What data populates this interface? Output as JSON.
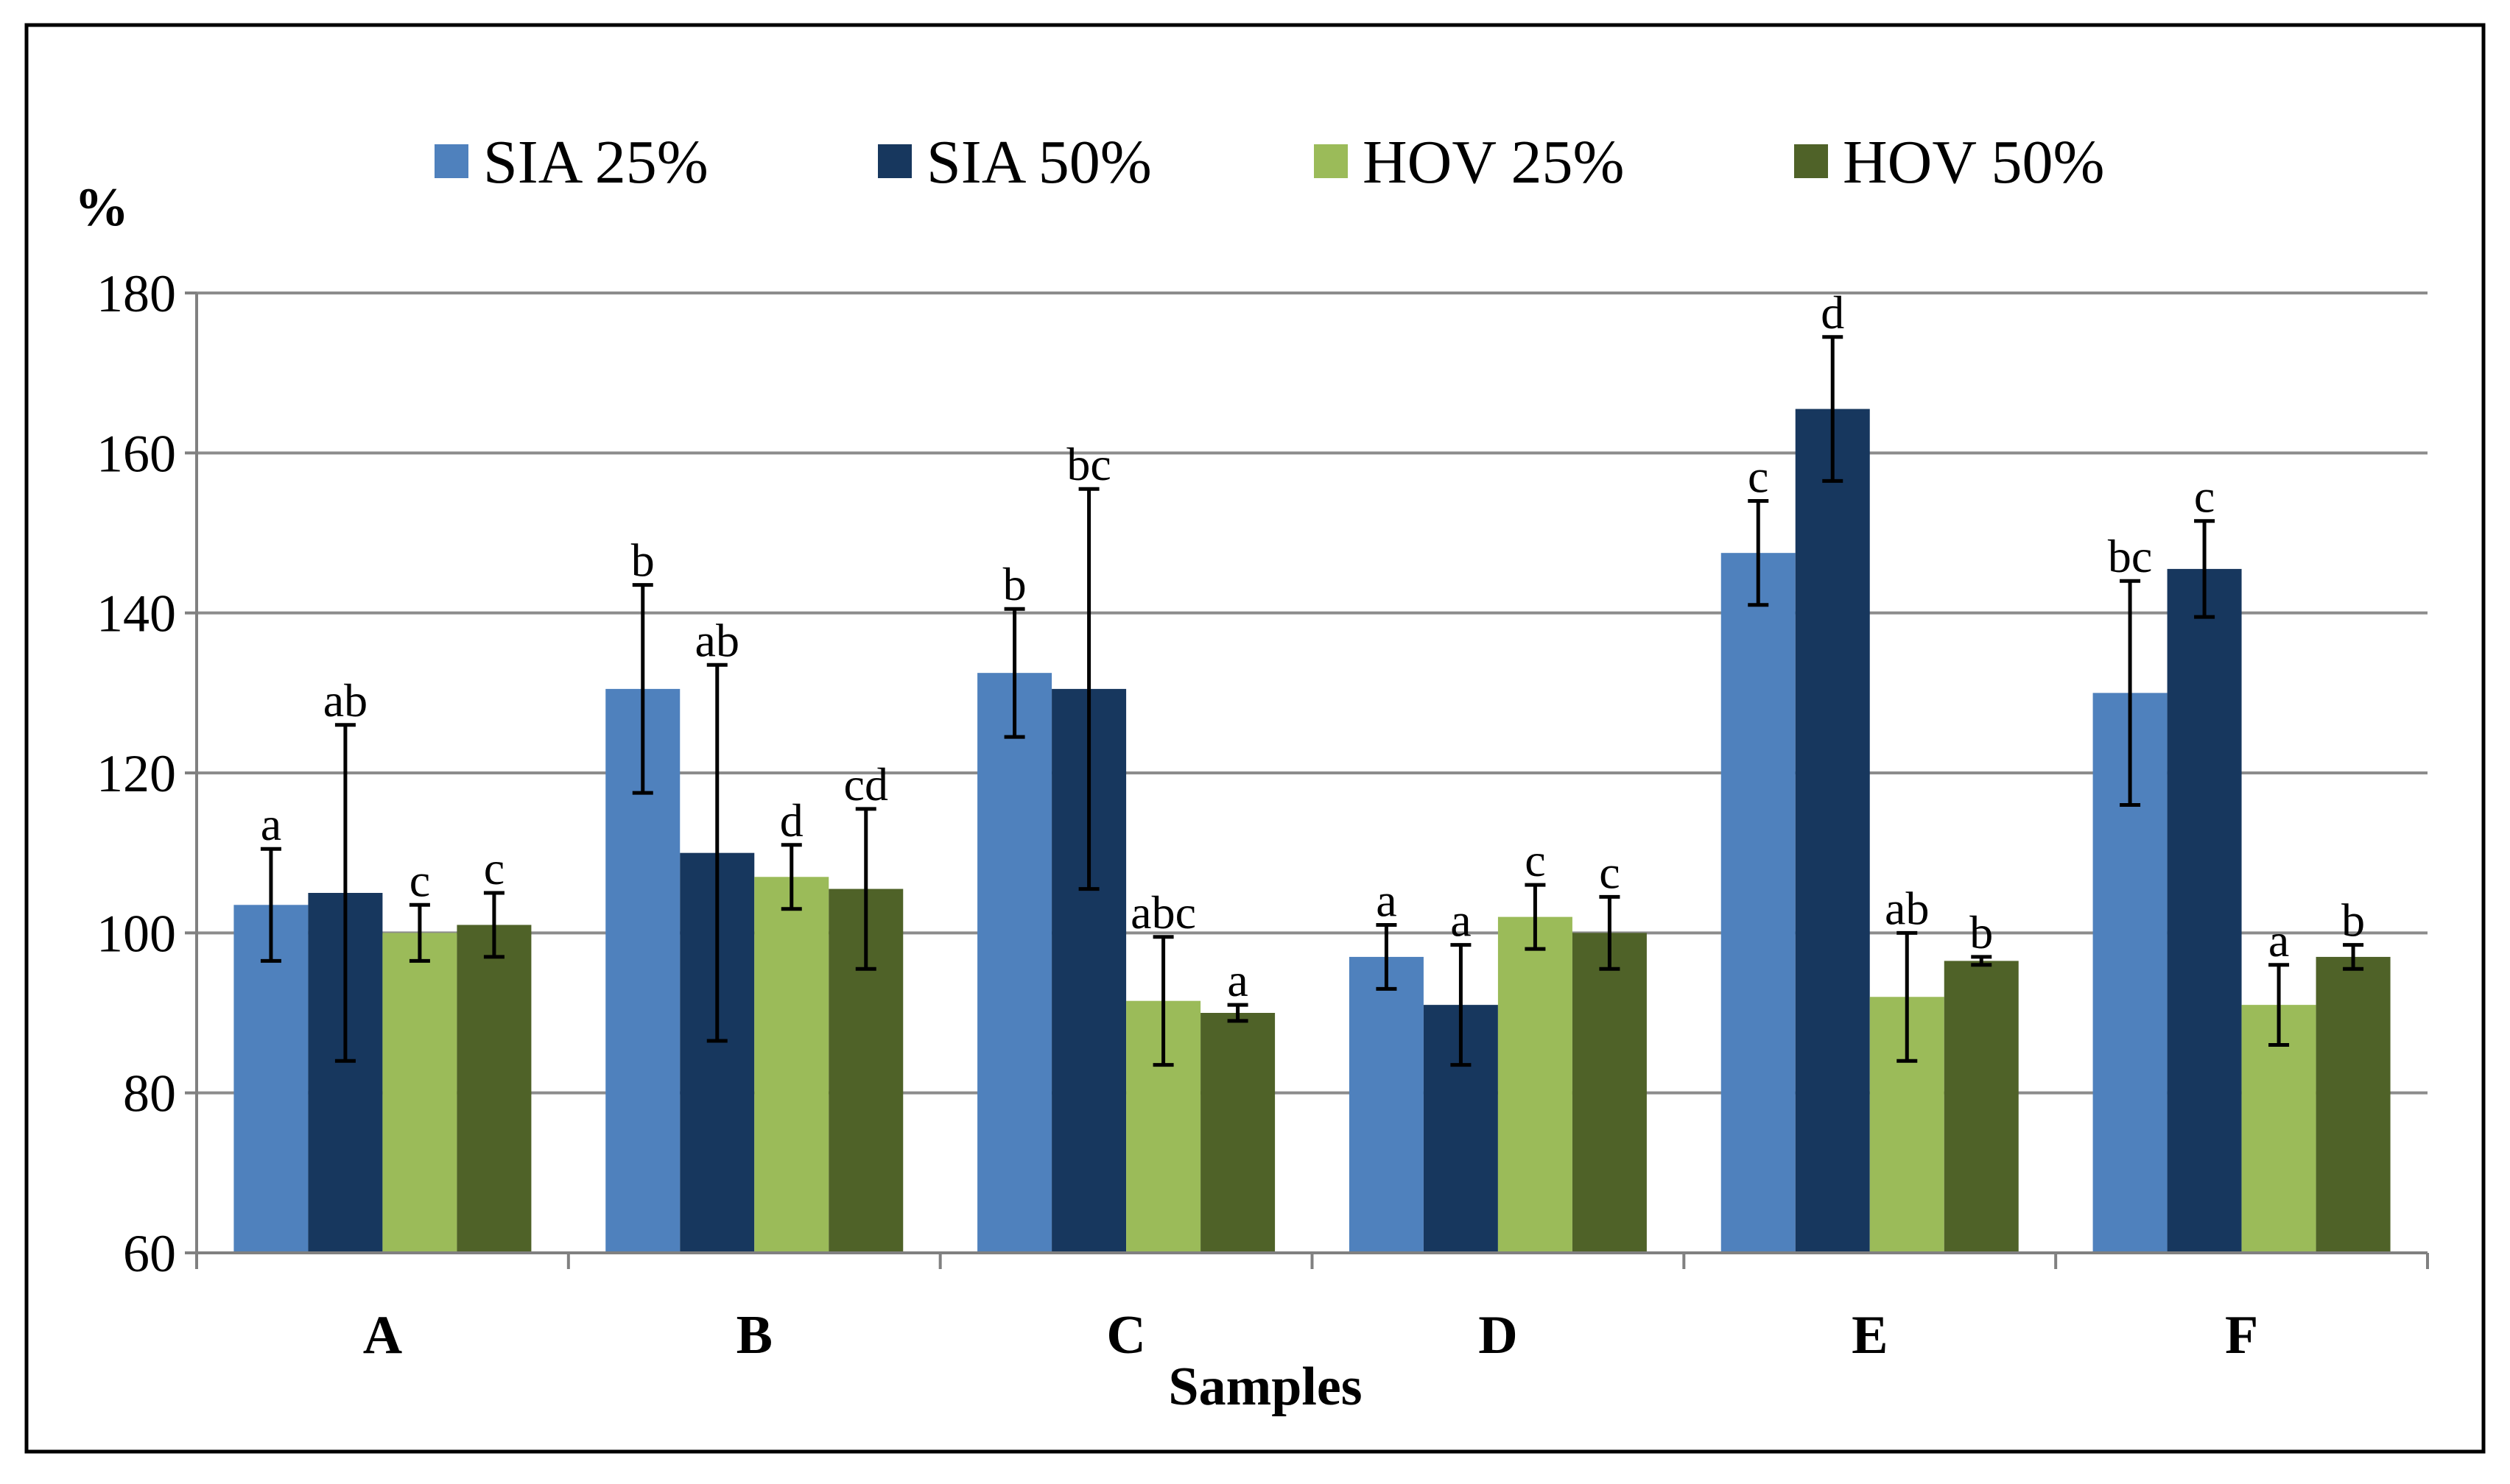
{
  "chart_data": {
    "type": "bar",
    "xlabel": "Samples",
    "ylabel": "%",
    "ylim": [
      60,
      180
    ],
    "yticks": [
      60,
      80,
      100,
      120,
      140,
      160,
      180
    ],
    "grid": true,
    "legend_position": "top",
    "categories": [
      "A",
      "B",
      "C",
      "D",
      "E",
      "F"
    ],
    "series": [
      {
        "name": "SIA 25%",
        "color": "#4f81bd",
        "values": [
          103.5,
          130.5,
          132.5,
          97,
          147.5,
          130
        ],
        "error": [
          7,
          13,
          8,
          4,
          6.5,
          14
        ],
        "labels": [
          "a",
          "b",
          "b",
          "a",
          "c",
          "bc"
        ]
      },
      {
        "name": "SIA 50%",
        "color": "#17375e",
        "values": [
          105,
          110,
          130.5,
          91,
          165.5,
          145.5
        ],
        "error": [
          21,
          23.5,
          25,
          7.5,
          9,
          6
        ],
        "labels": [
          "ab",
          "ab",
          "bc",
          "a",
          "d",
          "c"
        ]
      },
      {
        "name": "HOV 25%",
        "color": "#9bbb59",
        "values": [
          100,
          107,
          91.5,
          102,
          92,
          91
        ],
        "error": [
          3.5,
          4,
          8,
          4,
          8,
          5
        ],
        "labels": [
          "c",
          "d",
          "abc",
          "c",
          "ab",
          "a"
        ]
      },
      {
        "name": "HOV 50%",
        "color": "#4f6228",
        "values": [
          101,
          105.5,
          90,
          100,
          96.5,
          97
        ],
        "error": [
          4,
          10,
          1,
          4.5,
          0.5,
          1.5
        ],
        "labels": [
          "c",
          "cd",
          "a",
          "c",
          "b",
          "b"
        ]
      }
    ]
  }
}
